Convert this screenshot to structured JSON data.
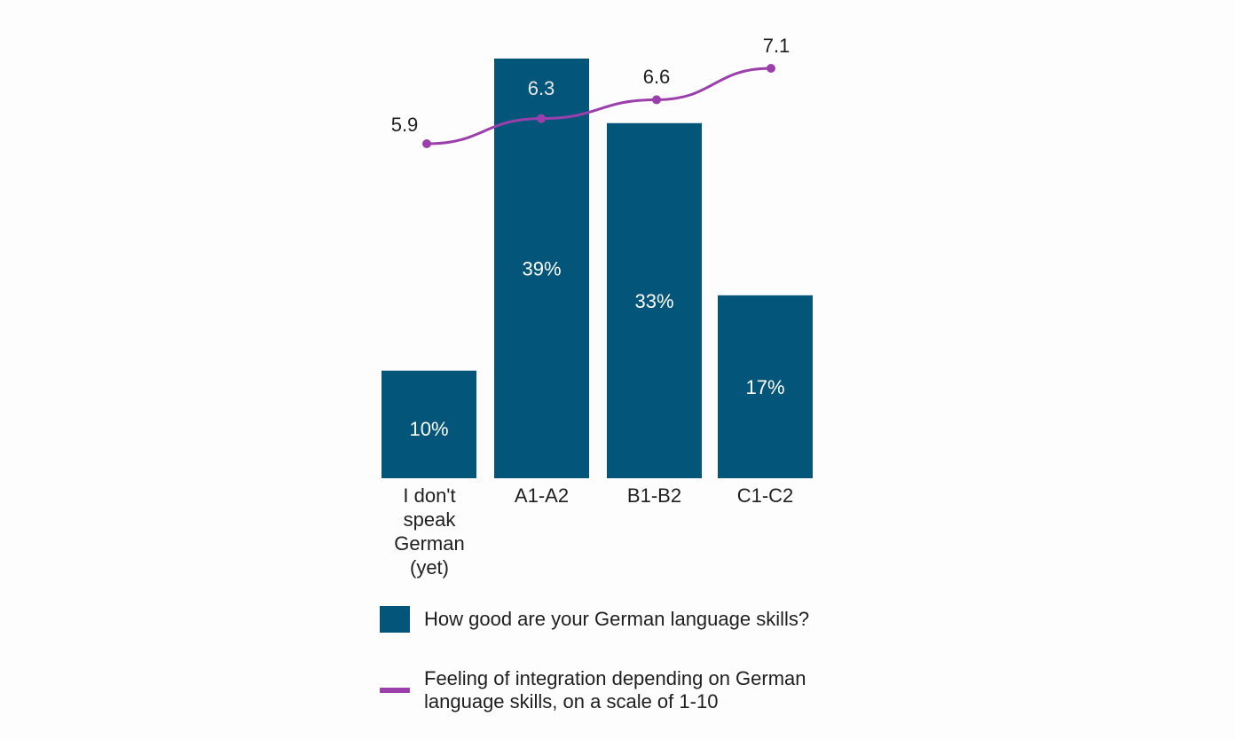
{
  "colors": {
    "bar": "#04557a",
    "line": "#9b3fac",
    "bar_label": "#ffffff",
    "text": "#202020",
    "line_label_on_bar": "#e6e6e6"
  },
  "chart_data": {
    "type": "bar",
    "title": "",
    "xlabel": "",
    "ylabel": "",
    "categories": [
      [
        "I don't",
        "speak",
        "German",
        "(yet)"
      ],
      [
        "A1-A2"
      ],
      [
        "B1-B2"
      ],
      [
        "C1-C2"
      ]
    ],
    "series": [
      {
        "name": "How good are your German language skills?",
        "kind": "bar",
        "values": [
          10,
          39,
          33,
          17
        ],
        "value_labels": [
          "10%",
          "39%",
          "33%",
          "17%"
        ],
        "unit": "%",
        "ylim": [
          0,
          46
        ]
      },
      {
        "name": "Feeling of integration depending on German language skills, on a scale of 1-10",
        "kind": "line",
        "values": [
          5.9,
          6.3,
          6.6,
          7.1
        ],
        "value_labels": [
          "5.9",
          "6.3",
          "6.6",
          "7.1"
        ],
        "ylim": [
          1,
          10
        ]
      }
    ]
  },
  "legend": {
    "bar_label": "How good are your German language skills?",
    "line_label": "Feeling of integration depending on German language skills, on a scale of 1-10"
  }
}
